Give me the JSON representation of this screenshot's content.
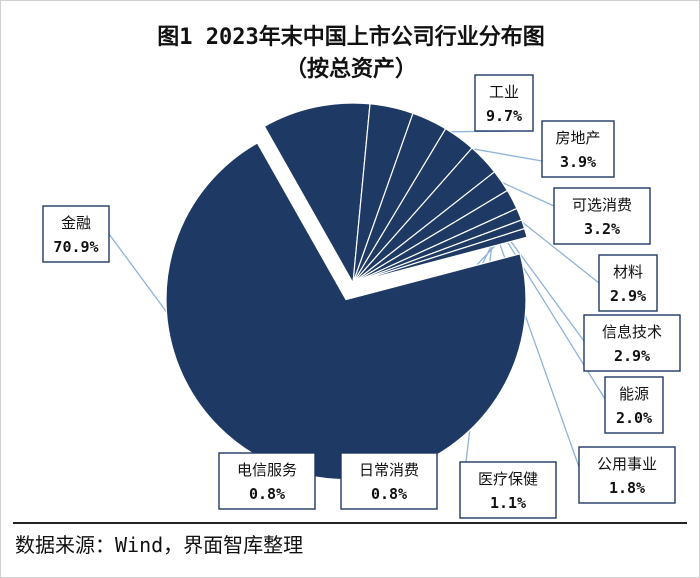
{
  "title": "图1 2023年末中国上市公司行业分布图",
  "subtitle": "（按总资产）",
  "source": "数据来源：Wind，界面智库整理",
  "colors": {
    "slice_fill": "#1e3a64",
    "slice_stroke": "#ffffff",
    "leader": "#8fb3d9",
    "label_border": "#1f3864"
  },
  "chart_data": {
    "type": "pie",
    "exploded": "金融",
    "slices": [
      {
        "name": "金融",
        "value": 70.9,
        "label": "70.9%"
      },
      {
        "name": "工业",
        "value": 9.7,
        "label": "9.7%"
      },
      {
        "name": "房地产",
        "value": 3.9,
        "label": "3.9%"
      },
      {
        "name": "可选消费",
        "value": 3.2,
        "label": "3.2%"
      },
      {
        "name": "材料",
        "value": 2.9,
        "label": "2.9%"
      },
      {
        "name": "信息技术",
        "value": 2.9,
        "label": "2.9%"
      },
      {
        "name": "能源",
        "value": 2.0,
        "label": "2.0%"
      },
      {
        "name": "公用事业",
        "value": 1.8,
        "label": "1.8%"
      },
      {
        "name": "医疗保健",
        "value": 1.1,
        "label": "1.1%"
      },
      {
        "name": "日常消费",
        "value": 0.8,
        "label": "0.8%"
      },
      {
        "name": "电信服务",
        "value": 0.8,
        "label": "0.8%"
      }
    ]
  }
}
